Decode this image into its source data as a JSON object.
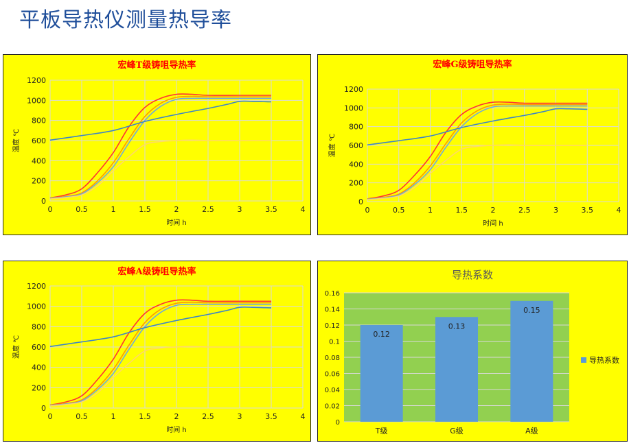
{
  "page": {
    "title": "平板导热仪测量热导率"
  },
  "colors": {
    "panel_bg": "#ffff00",
    "title_red": "#ff0000",
    "bar_plot_bg": "#92d050",
    "bar_fill": "#5b9bd5"
  },
  "chart_data": [
    {
      "type": "line",
      "title": "宏峰T级铸咀导热率",
      "xlabel": "时间 h",
      "ylabel": "温度 ℃",
      "xlim": [
        0,
        4
      ],
      "ylim": [
        0,
        1200
      ],
      "xticks": [
        "0",
        "0.5",
        "1",
        "1.5",
        "2",
        "2.5",
        "3",
        "3.5",
        "4"
      ],
      "yticks": [
        "0",
        "200",
        "400",
        "600",
        "800",
        "1000",
        "1200"
      ],
      "grid": true,
      "series": [
        {
          "color": "#ff3333",
          "x": [
            0,
            0.25,
            0.5,
            0.75,
            1,
            1.25,
            1.5,
            1.75,
            2,
            2.25,
            2.5,
            3,
            3.5
          ],
          "y": [
            30,
            60,
            120,
            280,
            480,
            740,
            930,
            1020,
            1060,
            1060,
            1050,
            1050,
            1050
          ]
        },
        {
          "color": "#ff9900",
          "x": [
            0,
            0.25,
            0.5,
            0.75,
            1,
            1.25,
            1.5,
            1.75,
            2,
            2.25,
            2.5,
            3,
            3.5
          ],
          "y": [
            30,
            45,
            80,
            200,
            380,
            620,
            840,
            970,
            1030,
            1040,
            1035,
            1035,
            1035
          ]
        },
        {
          "color": "#6fa8dc",
          "x": [
            0,
            0.25,
            0.5,
            0.75,
            1,
            1.25,
            1.5,
            1.75,
            2,
            2.25,
            2.5,
            3,
            3.5
          ],
          "y": [
            25,
            40,
            70,
            180,
            340,
            580,
            800,
            940,
            1010,
            1020,
            1020,
            1020,
            1020
          ]
        },
        {
          "color": "#ffd966",
          "x": [
            0,
            0.25,
            0.5,
            0.75,
            1,
            1.25,
            1.5,
            1.75,
            2,
            2.25,
            2.5,
            3,
            3.5
          ],
          "y": [
            20,
            35,
            60,
            150,
            300,
            440,
            560,
            590,
            600,
            605,
            600,
            600,
            600
          ]
        },
        {
          "color": "#3d85c6",
          "x": [
            0,
            0.5,
            1,
            1.5,
            2,
            2.5,
            2.8,
            3,
            3.2,
            3.5
          ],
          "y": [
            605,
            650,
            700,
            790,
            860,
            920,
            960,
            990,
            990,
            985
          ]
        }
      ]
    },
    {
      "type": "line",
      "title": "宏峰G级铸咀导热率",
      "xlabel": "时间 h",
      "ylabel": "温度 ℃",
      "xlim": [
        0,
        4
      ],
      "ylim": [
        0,
        1200
      ],
      "xticks": [
        "0",
        "0.5",
        "1",
        "1.5",
        "2",
        "2.5",
        "3",
        "3.5",
        "4"
      ],
      "yticks": [
        "0",
        "200",
        "400",
        "600",
        "800",
        "1000",
        "1200"
      ],
      "grid": true,
      "series": [
        {
          "color": "#ff3333",
          "x": [
            0,
            0.25,
            0.5,
            0.75,
            1,
            1.25,
            1.5,
            1.75,
            2,
            2.25,
            2.5,
            3,
            3.5
          ],
          "y": [
            30,
            60,
            120,
            280,
            480,
            740,
            930,
            1020,
            1060,
            1060,
            1050,
            1050,
            1050
          ]
        },
        {
          "color": "#ff9900",
          "x": [
            0,
            0.25,
            0.5,
            0.75,
            1,
            1.25,
            1.5,
            1.75,
            2,
            2.25,
            2.5,
            3,
            3.5
          ],
          "y": [
            30,
            45,
            80,
            200,
            380,
            620,
            840,
            970,
            1030,
            1040,
            1035,
            1035,
            1035
          ]
        },
        {
          "color": "#6fa8dc",
          "x": [
            0,
            0.25,
            0.5,
            0.75,
            1,
            1.25,
            1.5,
            1.75,
            2,
            2.25,
            2.5,
            3,
            3.5
          ],
          "y": [
            25,
            40,
            70,
            180,
            340,
            580,
            800,
            940,
            1010,
            1020,
            1020,
            1020,
            1020
          ]
        },
        {
          "color": "#ffd966",
          "x": [
            0,
            0.25,
            0.5,
            0.75,
            1,
            1.25,
            1.5,
            1.75,
            2,
            2.25,
            2.5,
            3,
            3.5
          ],
          "y": [
            20,
            35,
            60,
            150,
            300,
            440,
            560,
            590,
            600,
            605,
            600,
            600,
            600
          ]
        },
        {
          "color": "#3d85c6",
          "x": [
            0,
            0.5,
            1,
            1.5,
            2,
            2.5,
            2.8,
            3,
            3.2,
            3.5
          ],
          "y": [
            605,
            650,
            700,
            790,
            860,
            920,
            960,
            990,
            990,
            985
          ]
        }
      ]
    },
    {
      "type": "line",
      "title": "宏峰A级铸咀导热率",
      "xlabel": "时间 h",
      "ylabel": "温度 ℃",
      "xlim": [
        0,
        4
      ],
      "ylim": [
        0,
        1200
      ],
      "xticks": [
        "0",
        "0.5",
        "1",
        "1.5",
        "2",
        "2.5",
        "3",
        "3.5",
        "4"
      ],
      "yticks": [
        "0",
        "200",
        "400",
        "600",
        "800",
        "1000",
        "1200"
      ],
      "grid": true,
      "series": [
        {
          "color": "#ff3333",
          "x": [
            0,
            0.25,
            0.5,
            0.75,
            1,
            1.25,
            1.5,
            1.75,
            2,
            2.25,
            2.5,
            3,
            3.5
          ],
          "y": [
            30,
            60,
            120,
            280,
            480,
            740,
            930,
            1020,
            1060,
            1060,
            1050,
            1050,
            1050
          ]
        },
        {
          "color": "#ff9900",
          "x": [
            0,
            0.25,
            0.5,
            0.75,
            1,
            1.25,
            1.5,
            1.75,
            2,
            2.25,
            2.5,
            3,
            3.5
          ],
          "y": [
            30,
            45,
            80,
            200,
            380,
            620,
            840,
            970,
            1030,
            1040,
            1035,
            1035,
            1035
          ]
        },
        {
          "color": "#6fa8dc",
          "x": [
            0,
            0.25,
            0.5,
            0.75,
            1,
            1.25,
            1.5,
            1.75,
            2,
            2.25,
            2.5,
            3,
            3.5
          ],
          "y": [
            25,
            40,
            70,
            180,
            340,
            580,
            800,
            940,
            1010,
            1020,
            1020,
            1020,
            1020
          ]
        },
        {
          "color": "#ffd966",
          "x": [
            0,
            0.25,
            0.5,
            0.75,
            1,
            1.25,
            1.5,
            1.75,
            2,
            2.25,
            2.5,
            3,
            3.5
          ],
          "y": [
            20,
            35,
            60,
            150,
            300,
            440,
            560,
            590,
            600,
            605,
            600,
            600,
            600
          ]
        },
        {
          "color": "#3d85c6",
          "x": [
            0,
            0.5,
            1,
            1.5,
            2,
            2.5,
            2.8,
            3,
            3.2,
            3.5
          ],
          "y": [
            605,
            650,
            700,
            790,
            860,
            920,
            960,
            990,
            990,
            985
          ]
        }
      ]
    },
    {
      "type": "bar",
      "title": "导热系数",
      "categories": [
        "T级",
        "G级",
        "A级"
      ],
      "series": [
        {
          "name": "导热系数",
          "values": [
            0.12,
            0.13,
            0.15
          ]
        }
      ],
      "data_labels": [
        "0.12",
        "0.13",
        "0.15"
      ],
      "ylim": [
        0,
        0.16
      ],
      "yticks": [
        "0",
        "0.02",
        "0.04",
        "0.06",
        "0.08",
        "0.1",
        "0.12",
        "0.14",
        "0.16"
      ],
      "grid": true,
      "legend": "right"
    }
  ]
}
